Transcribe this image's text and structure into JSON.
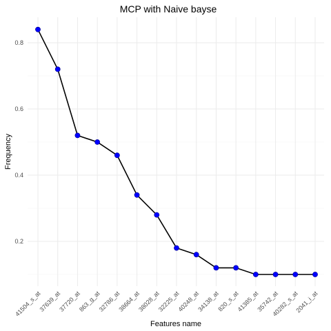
{
  "chart_data": {
    "type": "line",
    "title": "MCP with Naive bayse",
    "xlabel": "Features name",
    "ylabel": "Frequency",
    "categories": [
      "41504_s_at",
      "37639_at",
      "37720_at",
      "863_g_at",
      "32786_at",
      "38664_at",
      "38028_at",
      "32225_at",
      "40248_at",
      "34138_at",
      "820_s_at",
      "41385_at",
      "35742_at",
      "40282_s_at",
      "2041_i_at"
    ],
    "values": [
      0.84,
      0.72,
      0.52,
      0.5,
      0.46,
      0.34,
      0.28,
      0.18,
      0.16,
      0.12,
      0.12,
      0.1,
      0.1,
      0.1,
      0.1
    ],
    "yticks": [
      "0.2",
      "0.4",
      "0.6",
      "0.8"
    ],
    "ylim": [
      0.08,
      0.86
    ],
    "grid": true,
    "legend": "none",
    "colors": {
      "line": "#000000",
      "point": "#0000ff",
      "grid": "#ebebeb"
    }
  }
}
